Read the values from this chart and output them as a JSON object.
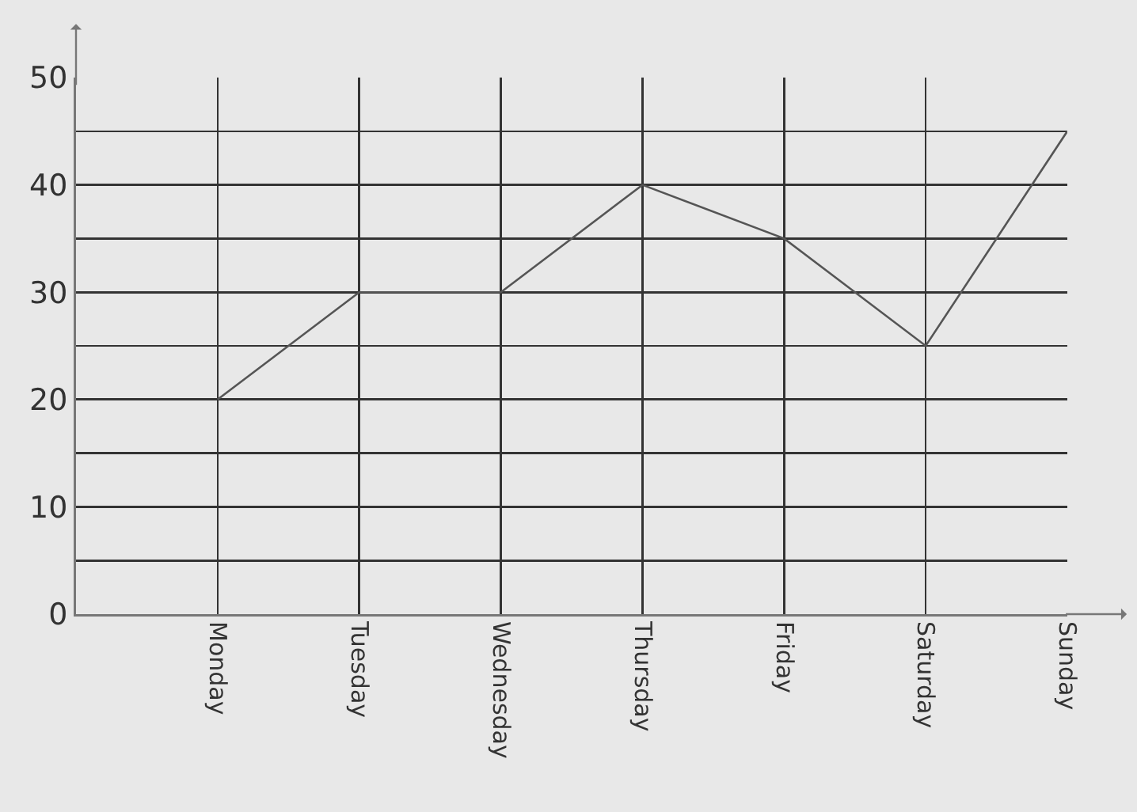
{
  "chart_data": {
    "type": "line",
    "categories": [
      "Monday",
      "Tuesday",
      "Wednesday",
      "Thursday",
      "Friday",
      "Saturday",
      "Sunday"
    ],
    "values": [
      20,
      30,
      30,
      40,
      35,
      25,
      45
    ],
    "color": "#555555",
    "ylim": [
      0,
      50
    ],
    "yticks": [
      0,
      {
        "value": 5,
        "label": null
      },
      10,
      {
        "value": 15,
        "label": null
      },
      20,
      {
        "value": 25,
        "label": null
      },
      30,
      {
        "value": 35,
        "label": null
      },
      40,
      {
        "value": 45,
        "label": null
      },
      50
    ],
    "grid": true,
    "marker": "none",
    "line_style": "solid"
  }
}
